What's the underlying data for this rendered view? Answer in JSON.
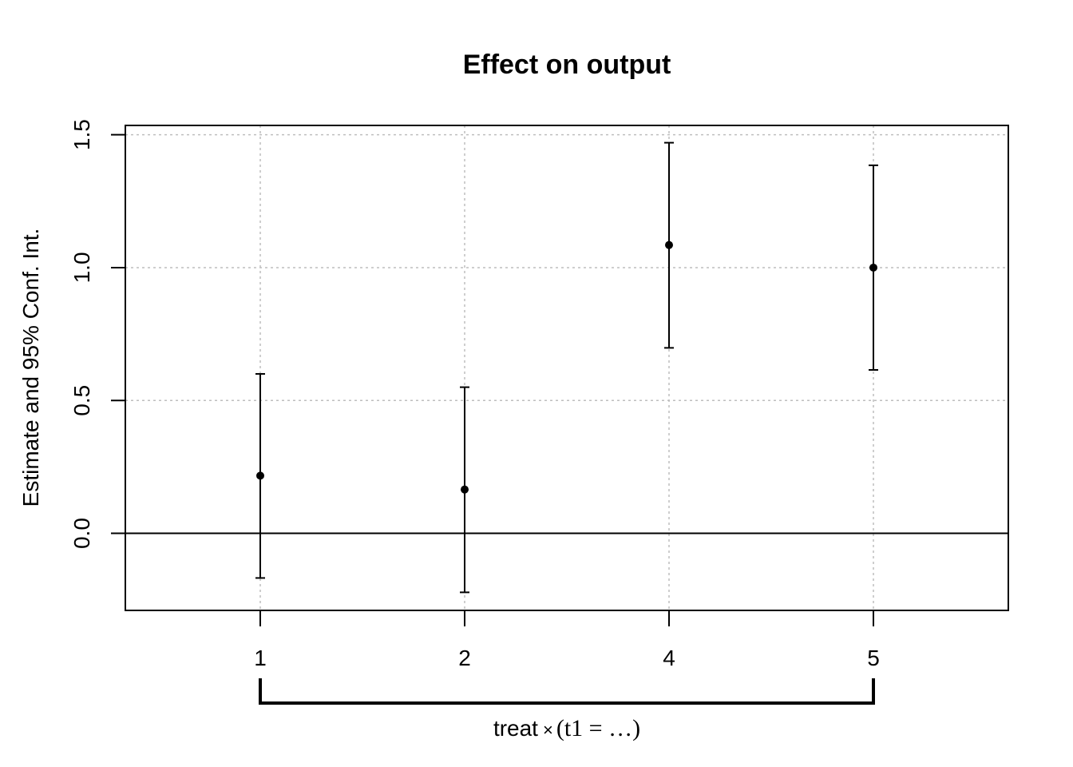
{
  "chart_data": {
    "type": "scatter",
    "title": "Effect on output",
    "ylabel": "Estimate and 95% Conf. Int.",
    "x_group_label": {
      "prefix": "treat",
      "operator": "×",
      "expression": "(t1 = …)"
    },
    "categories": [
      "1",
      "2",
      "4",
      "5"
    ],
    "estimates": [
      0.217,
      0.165,
      1.085,
      1.0
    ],
    "ci_lower": [
      -0.168,
      -0.222,
      0.698,
      0.615
    ],
    "ci_upper": [
      0.6,
      0.55,
      1.47,
      1.385
    ],
    "yticks": [
      "0.0",
      "0.5",
      "1.0",
      "1.5"
    ],
    "ytick_values": [
      0.0,
      0.5,
      1.0,
      1.5
    ],
    "ylim": [
      -0.29,
      1.535
    ],
    "reference_line": 0,
    "grid": true,
    "colors": {
      "points": "#000000",
      "grid": "#bebebe",
      "axes": "#000000"
    }
  }
}
